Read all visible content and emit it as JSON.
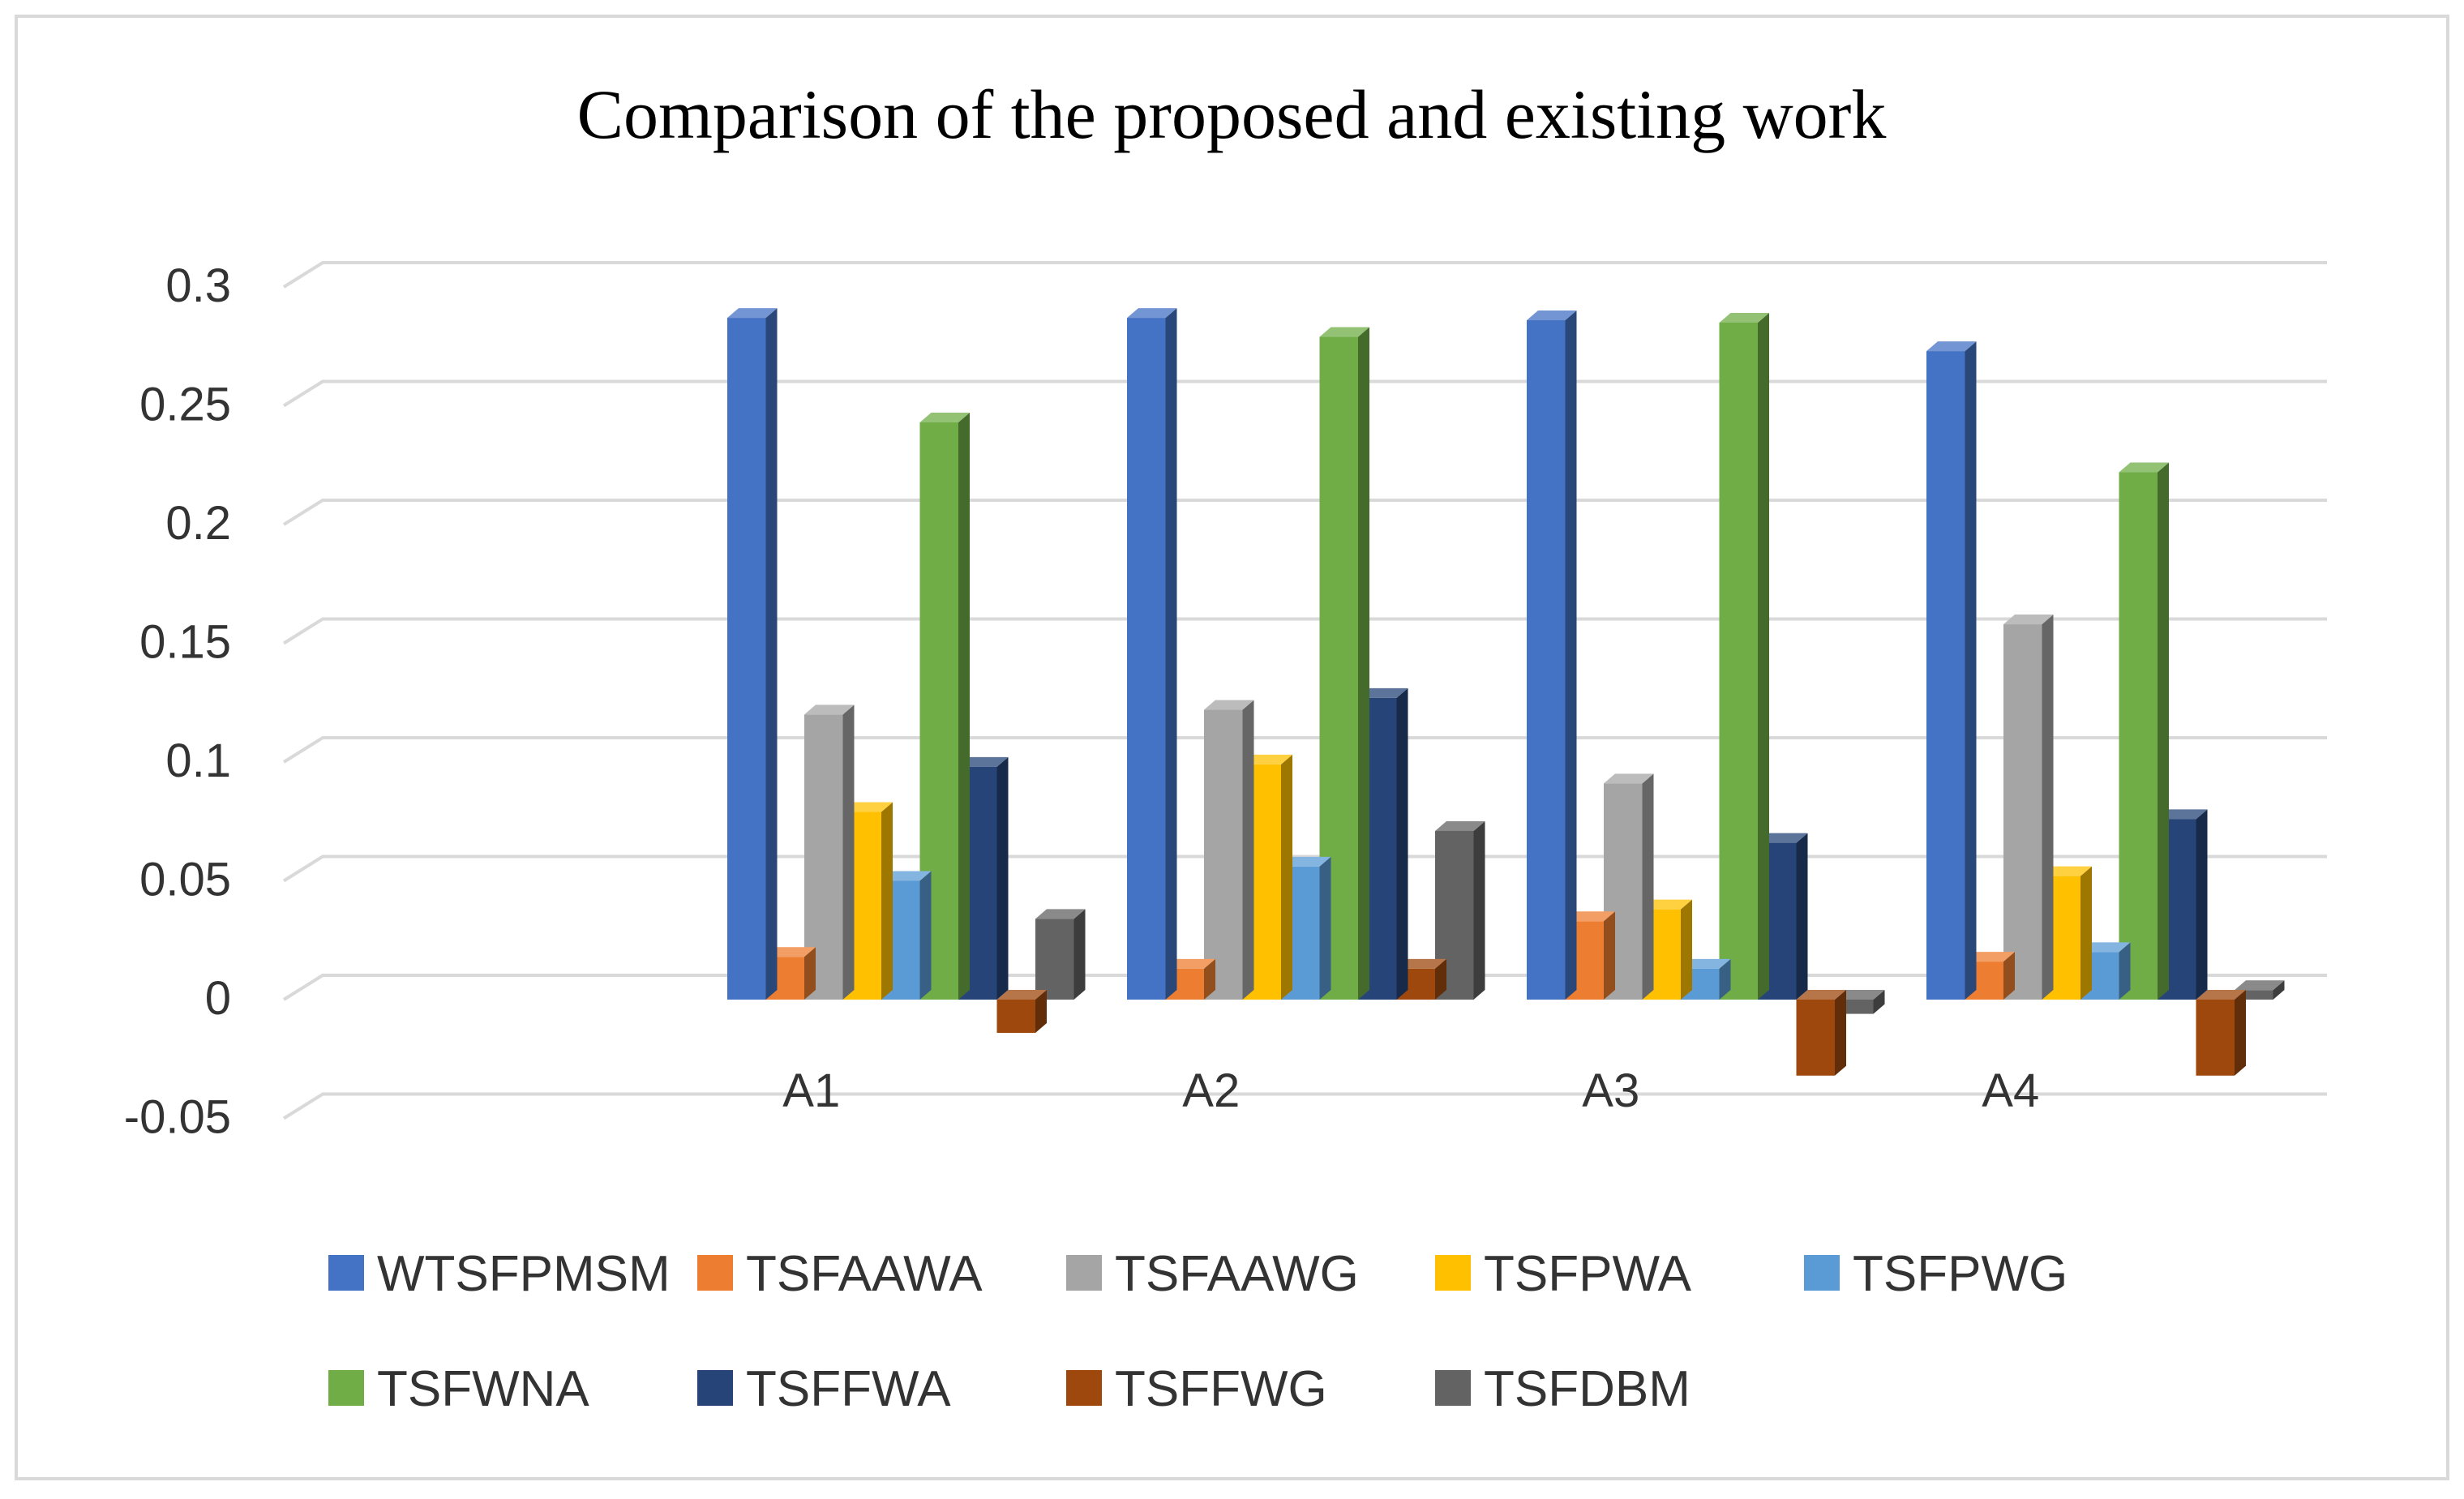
{
  "chart_data": {
    "type": "bar",
    "style": "3d-clustered-column",
    "title": "Comparison of the proposed and existing work",
    "xlabel": "",
    "ylabel": "",
    "ylim": [
      -0.05,
      0.3
    ],
    "yticks": [
      0.3,
      0.25,
      0.2,
      0.15,
      0.1,
      0.05,
      0,
      -0.05
    ],
    "ytick_labels": [
      "0.3",
      "0.25",
      "0.2",
      "0.15",
      "0.1",
      "0.05",
      "0",
      "-0.05"
    ],
    "categories": [
      "A1",
      "A2",
      "A3",
      "A4"
    ],
    "grid": true,
    "legend_position": "bottom",
    "series": [
      {
        "name": "WTSFPMSM",
        "color": "#4472C4",
        "values": [
          0.287,
          0.287,
          0.286,
          0.273
        ]
      },
      {
        "name": "TSFAAWA",
        "color": "#ED7D31",
        "values": [
          0.018,
          0.013,
          0.033,
          0.016
        ]
      },
      {
        "name": "TSFAAWG",
        "color": "#A5A5A5",
        "values": [
          0.12,
          0.122,
          0.091,
          0.158
        ]
      },
      {
        "name": "TSFPWA",
        "color": "#FFC000",
        "values": [
          0.079,
          0.099,
          0.038,
          0.052
        ]
      },
      {
        "name": "TSFPWG",
        "color": "#5B9BD5",
        "values": [
          0.05,
          0.056,
          0.013,
          0.02
        ]
      },
      {
        "name": "TSFWNA",
        "color": "#70AD47",
        "values": [
          0.243,
          0.279,
          0.285,
          0.222
        ]
      },
      {
        "name": "TSFFWA",
        "color": "#264478",
        "values": [
          0.098,
          0.127,
          0.066,
          0.076
        ]
      },
      {
        "name": "TSFFWG",
        "color": "#9E480E",
        "values": [
          -0.014,
          0.013,
          -0.032,
          -0.032
        ]
      },
      {
        "name": "TSFDBM",
        "color": "#636363",
        "values": [
          0.034,
          0.071,
          -0.006,
          0.004
        ]
      }
    ]
  }
}
